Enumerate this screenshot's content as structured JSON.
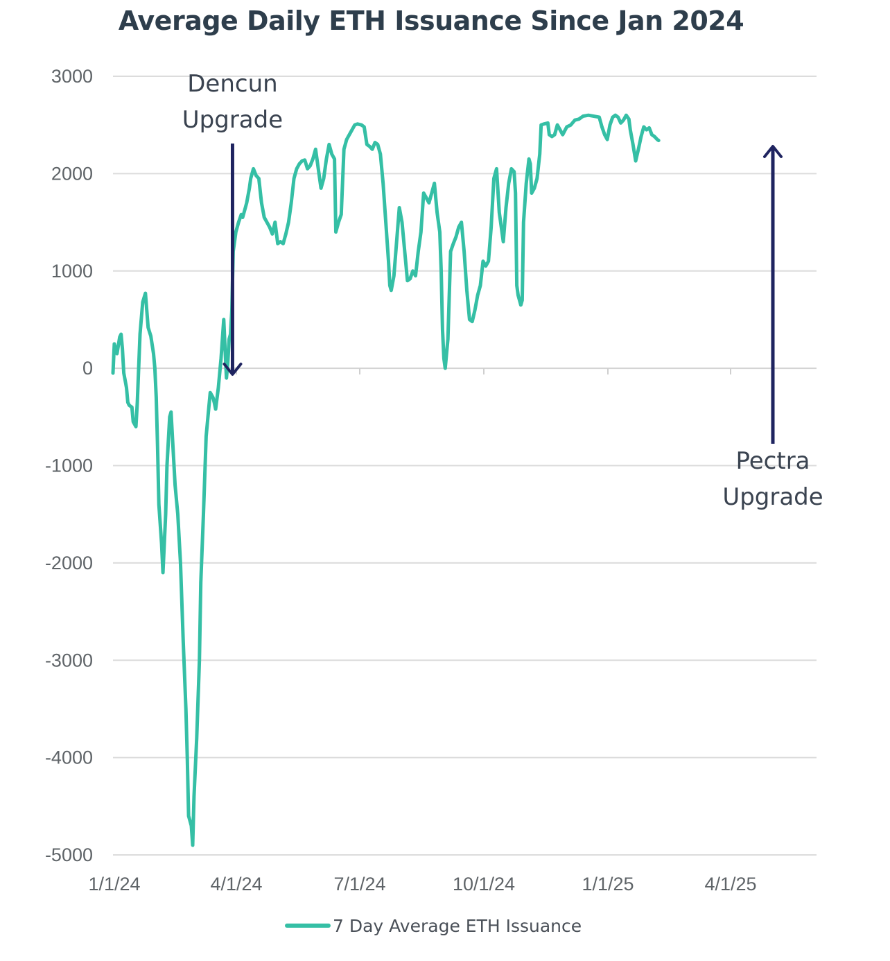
{
  "chart_data": {
    "type": "line",
    "title": "Average Daily ETH Issuance Since Jan 2024",
    "xlabel": "",
    "ylabel": "",
    "ylim": [
      -5000,
      3000
    ],
    "yticks": [
      3000,
      2000,
      1000,
      0,
      -1000,
      -2000,
      -3000,
      -4000,
      -5000
    ],
    "xticks": [
      "1/1/24",
      "4/1/24",
      "7/1/24",
      "10/1/24",
      "1/1/25",
      "4/1/25"
    ],
    "xrange_days": [
      0,
      510
    ],
    "grid": "horizontal",
    "legend_position": "bottom",
    "series": [
      {
        "name": "7 Day Average ETH Issuance",
        "color": "#35bfa5",
        "points": [
          [
            0,
            -50
          ],
          [
            1,
            250
          ],
          [
            3,
            150
          ],
          [
            5,
            320
          ],
          [
            6,
            350
          ],
          [
            7,
            200
          ],
          [
            8,
            -50
          ],
          [
            10,
            -200
          ],
          [
            11,
            -350
          ],
          [
            12,
            -380
          ],
          [
            14,
            -400
          ],
          [
            15,
            -550
          ],
          [
            17,
            -600
          ],
          [
            18,
            -350
          ],
          [
            20,
            350
          ],
          [
            22,
            680
          ],
          [
            24,
            770
          ],
          [
            26,
            420
          ],
          [
            28,
            330
          ],
          [
            30,
            150
          ],
          [
            31,
            0
          ],
          [
            32,
            -300
          ],
          [
            33,
            -800
          ],
          [
            34,
            -1400
          ],
          [
            36,
            -1800
          ],
          [
            37,
            -2100
          ],
          [
            39,
            -1500
          ],
          [
            40,
            -1000
          ],
          [
            42,
            -500
          ],
          [
            43,
            -450
          ],
          [
            44,
            -700
          ],
          [
            46,
            -1200
          ],
          [
            48,
            -1500
          ],
          [
            50,
            -2000
          ],
          [
            52,
            -2800
          ],
          [
            54,
            -3500
          ],
          [
            55,
            -4000
          ],
          [
            56,
            -4600
          ],
          [
            57,
            -4650
          ],
          [
            58,
            -4700
          ],
          [
            59,
            -4900
          ],
          [
            60,
            -4400
          ],
          [
            62,
            -3800
          ],
          [
            64,
            -3000
          ],
          [
            65,
            -2200
          ],
          [
            67,
            -1500
          ],
          [
            69,
            -700
          ],
          [
            71,
            -400
          ],
          [
            72,
            -250
          ],
          [
            74,
            -300
          ],
          [
            75,
            -350
          ],
          [
            76,
            -420
          ],
          [
            78,
            -200
          ],
          [
            80,
            100
          ],
          [
            82,
            500
          ],
          [
            83,
            200
          ],
          [
            84,
            -100
          ],
          [
            85,
            50
          ],
          [
            86,
            300
          ],
          [
            87,
            350
          ],
          [
            88,
            600
          ],
          [
            89,
            1200
          ],
          [
            90,
            1300
          ],
          [
            91,
            1400
          ],
          [
            93,
            1500
          ],
          [
            95,
            1580
          ],
          [
            96,
            1550
          ],
          [
            98,
            1650
          ],
          [
            99,
            1700
          ],
          [
            101,
            1850
          ],
          [
            102,
            1950
          ],
          [
            104,
            2050
          ],
          [
            106,
            1980
          ],
          [
            108,
            1950
          ],
          [
            110,
            1700
          ],
          [
            112,
            1550
          ],
          [
            114,
            1500
          ],
          [
            116,
            1450
          ],
          [
            118,
            1380
          ],
          [
            120,
            1500
          ],
          [
            122,
            1280
          ],
          [
            124,
            1300
          ],
          [
            126,
            1280
          ],
          [
            128,
            1380
          ],
          [
            130,
            1500
          ],
          [
            132,
            1700
          ],
          [
            134,
            1950
          ],
          [
            136,
            2050
          ],
          [
            138,
            2100
          ],
          [
            140,
            2130
          ],
          [
            142,
            2140
          ],
          [
            144,
            2050
          ],
          [
            146,
            2080
          ],
          [
            148,
            2150
          ],
          [
            150,
            2250
          ],
          [
            152,
            2050
          ],
          [
            154,
            1850
          ],
          [
            156,
            1950
          ],
          [
            158,
            2150
          ],
          [
            160,
            2300
          ],
          [
            162,
            2200
          ],
          [
            164,
            2150
          ],
          [
            165,
            1400
          ],
          [
            167,
            1500
          ],
          [
            169,
            1580
          ],
          [
            171,
            2250
          ],
          [
            173,
            2350
          ],
          [
            175,
            2400
          ],
          [
            177,
            2450
          ],
          [
            179,
            2500
          ],
          [
            181,
            2510
          ],
          [
            184,
            2500
          ],
          [
            186,
            2480
          ],
          [
            188,
            2300
          ],
          [
            190,
            2280
          ],
          [
            192,
            2250
          ],
          [
            194,
            2320
          ],
          [
            196,
            2300
          ],
          [
            198,
            2200
          ],
          [
            200,
            1900
          ],
          [
            202,
            1500
          ],
          [
            204,
            1100
          ],
          [
            205,
            850
          ],
          [
            206,
            800
          ],
          [
            208,
            950
          ],
          [
            210,
            1300
          ],
          [
            212,
            1650
          ],
          [
            214,
            1500
          ],
          [
            216,
            1200
          ],
          [
            218,
            900
          ],
          [
            220,
            920
          ],
          [
            222,
            1000
          ],
          [
            224,
            950
          ],
          [
            226,
            1200
          ],
          [
            228,
            1400
          ],
          [
            230,
            1800
          ],
          [
            232,
            1750
          ],
          [
            234,
            1700
          ],
          [
            236,
            1800
          ],
          [
            238,
            1900
          ],
          [
            240,
            1600
          ],
          [
            242,
            1400
          ],
          [
            243,
            1000
          ],
          [
            244,
            400
          ],
          [
            245,
            100
          ],
          [
            246,
            0
          ],
          [
            248,
            300
          ],
          [
            250,
            1200
          ],
          [
            252,
            1280
          ],
          [
            254,
            1350
          ],
          [
            256,
            1450
          ],
          [
            258,
            1500
          ],
          [
            260,
            1200
          ],
          [
            262,
            800
          ],
          [
            264,
            500
          ],
          [
            266,
            480
          ],
          [
            268,
            600
          ],
          [
            270,
            750
          ],
          [
            272,
            850
          ],
          [
            274,
            1100
          ],
          [
            276,
            1050
          ],
          [
            278,
            1100
          ],
          [
            280,
            1450
          ],
          [
            282,
            1950
          ],
          [
            284,
            2050
          ],
          [
            286,
            1600
          ],
          [
            288,
            1400
          ],
          [
            289,
            1300
          ],
          [
            291,
            1650
          ],
          [
            293,
            1900
          ],
          [
            295,
            2050
          ],
          [
            297,
            2020
          ],
          [
            298,
            1800
          ],
          [
            299,
            850
          ],
          [
            300,
            750
          ],
          [
            302,
            650
          ],
          [
            303,
            700
          ],
          [
            304,
            1500
          ],
          [
            306,
            1900
          ],
          [
            308,
            2150
          ],
          [
            309,
            2100
          ],
          [
            310,
            1800
          ],
          [
            312,
            1850
          ],
          [
            314,
            1950
          ],
          [
            316,
            2200
          ],
          [
            317,
            2500
          ],
          [
            319,
            2510
          ],
          [
            322,
            2520
          ],
          [
            323,
            2400
          ],
          [
            325,
            2380
          ],
          [
            327,
            2400
          ],
          [
            329,
            2500
          ],
          [
            331,
            2450
          ],
          [
            333,
            2400
          ],
          [
            336,
            2480
          ],
          [
            339,
            2500
          ],
          [
            342,
            2550
          ],
          [
            345,
            2560
          ],
          [
            348,
            2590
          ],
          [
            352,
            2600
          ],
          [
            356,
            2590
          ],
          [
            360,
            2580
          ],
          [
            362,
            2480
          ],
          [
            364,
            2400
          ],
          [
            366,
            2350
          ],
          [
            368,
            2500
          ],
          [
            370,
            2580
          ],
          [
            372,
            2600
          ],
          [
            374,
            2580
          ],
          [
            376,
            2520
          ],
          [
            378,
            2550
          ],
          [
            380,
            2600
          ],
          [
            382,
            2560
          ],
          [
            383,
            2450
          ],
          [
            385,
            2300
          ],
          [
            387,
            2130
          ],
          [
            389,
            2250
          ],
          [
            391,
            2380
          ],
          [
            393,
            2480
          ],
          [
            395,
            2450
          ],
          [
            397,
            2470
          ],
          [
            399,
            2400
          ],
          [
            401,
            2380
          ],
          [
            403,
            2350
          ],
          [
            404,
            2340
          ]
        ]
      }
    ],
    "annotations": [
      {
        "lines": [
          "Dencun",
          "Upgrade"
        ],
        "arrow": "down",
        "x_day": 88
      },
      {
        "lines": [
          "Pectra",
          "Upgrade"
        ],
        "arrow": "up",
        "x_day": 477
      }
    ]
  }
}
